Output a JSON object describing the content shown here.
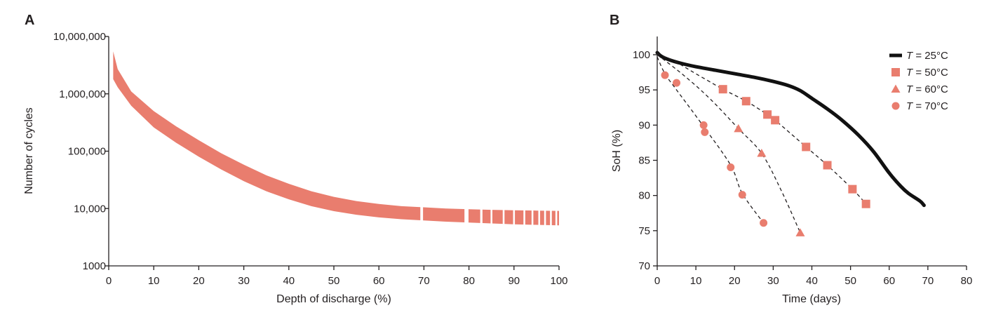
{
  "chart_data": [
    {
      "panel": "A",
      "type": "area",
      "xlabel": "Depth of discharge (%)",
      "ylabel": "Number of cycles",
      "y_scale": "log",
      "xlim": [
        0,
        100
      ],
      "ylim": [
        1000,
        10000000
      ],
      "x_ticks": [
        "0",
        "10",
        "20",
        "30",
        "40",
        "50",
        "60",
        "70",
        "80",
        "90",
        "100"
      ],
      "y_ticks": [
        "1000",
        "10,000",
        "100,000",
        "1,000,000",
        "10,000,000"
      ],
      "band_color": "#e97d6e",
      "band": [
        {
          "x": 1,
          "upper": 5500000,
          "lower": 1800000
        },
        {
          "x": 2,
          "upper": 2700000,
          "lower": 1300000
        },
        {
          "x": 5,
          "upper": 1100000,
          "lower": 620000
        },
        {
          "x": 10,
          "upper": 500000,
          "lower": 260000
        },
        {
          "x": 15,
          "upper": 270000,
          "lower": 140000
        },
        {
          "x": 20,
          "upper": 155000,
          "lower": 80000
        },
        {
          "x": 25,
          "upper": 92000,
          "lower": 48000
        },
        {
          "x": 30,
          "upper": 58000,
          "lower": 30000
        },
        {
          "x": 35,
          "upper": 38000,
          "lower": 20000
        },
        {
          "x": 40,
          "upper": 27000,
          "lower": 14500
        },
        {
          "x": 45,
          "upper": 20000,
          "lower": 11000
        },
        {
          "x": 50,
          "upper": 16000,
          "lower": 9000
        },
        {
          "x": 55,
          "upper": 13500,
          "lower": 7800
        },
        {
          "x": 60,
          "upper": 12000,
          "lower": 7000
        },
        {
          "x": 65,
          "upper": 11000,
          "lower": 6500
        },
        {
          "x": 70,
          "upper": 10500,
          "lower": 6200
        },
        {
          "x": 75,
          "upper": 10000,
          "lower": 5900
        },
        {
          "x": 80,
          "upper": 9700,
          "lower": 5700
        },
        {
          "x": 85,
          "upper": 9500,
          "lower": 5500
        },
        {
          "x": 90,
          "upper": 9300,
          "lower": 5300
        },
        {
          "x": 95,
          "upper": 9200,
          "lower": 5200
        },
        {
          "x": 100,
          "upper": 9100,
          "lower": 5100
        }
      ],
      "band_gaps": [
        [
          69.2,
          69.8
        ],
        [
          79.0,
          79.9
        ],
        [
          82.5,
          83.0
        ],
        [
          84.8,
          85.2
        ],
        [
          87.5,
          87.9
        ],
        [
          89.8,
          90.2
        ],
        [
          92.1,
          92.5
        ],
        [
          93.9,
          94.3
        ],
        [
          95.4,
          95.8
        ],
        [
          96.7,
          97.1
        ],
        [
          98.0,
          98.4
        ],
        [
          99.2,
          99.6
        ]
      ]
    },
    {
      "panel": "B",
      "type": "line",
      "xlabel": "Time (days)",
      "ylabel": "SoH (%)",
      "xlim": [
        0,
        80
      ],
      "ylim": [
        70,
        100
      ],
      "x_ticks": [
        "0",
        "10",
        "20",
        "30",
        "40",
        "50",
        "60",
        "70",
        "80"
      ],
      "y_ticks": [
        "70",
        "75",
        "80",
        "85",
        "90",
        "95",
        "100"
      ],
      "series": [
        {
          "name": "T = 25°C",
          "var": "T",
          "rest": " = 25°C",
          "marker": "line",
          "color": "#111111",
          "x": [
            0,
            1,
            3,
            6,
            10,
            15,
            20,
            25,
            30,
            34,
            37,
            40,
            44,
            48,
            52,
            56,
            60,
            63,
            65,
            68,
            69
          ],
          "y": [
            100.3,
            99.8,
            99.3,
            98.8,
            98.3,
            97.8,
            97.3,
            96.8,
            96.2,
            95.6,
            94.9,
            93.8,
            92.3,
            90.6,
            88.6,
            86.2,
            83.2,
            81.3,
            80.3,
            79.2,
            78.6
          ]
        },
        {
          "name": "T = 50°C",
          "var": "T",
          "rest": " = 50°C",
          "marker": "square",
          "color": "#e97d6e",
          "x": [
            17,
            23,
            28.5,
            30.5,
            38.5,
            44,
            50.5,
            54
          ],
          "y": [
            95.1,
            93.4,
            91.5,
            90.7,
            86.9,
            84.3,
            80.9,
            78.8
          ],
          "fit_x": [
            0,
            5,
            10,
            17,
            23,
            28.5,
            30.5,
            38.5,
            44,
            50.5,
            54
          ],
          "fit_y": [
            100.2,
            98.9,
            97.3,
            95.1,
            93.4,
            91.5,
            90.7,
            86.9,
            84.3,
            80.9,
            78.8
          ]
        },
        {
          "name": "T = 60°C",
          "var": "T",
          "rest": " = 60°C",
          "marker": "triangle",
          "color": "#e97d6e",
          "x": [
            21,
            27,
            37
          ],
          "y": [
            89.5,
            86.0,
            74.7
          ],
          "fit_x": [
            0,
            5,
            10,
            15,
            21,
            27,
            32,
            37
          ],
          "fit_y": [
            100.0,
            97.9,
            95.6,
            93.0,
            89.5,
            86.0,
            80.8,
            74.7
          ]
        },
        {
          "name": "T = 70°C",
          "var": "T",
          "rest": " = 70°C",
          "marker": "circle",
          "color": "#e97d6e",
          "x": [
            2,
            5,
            12,
            12.3,
            19,
            22,
            27.5
          ],
          "y": [
            97.1,
            96.0,
            90.0,
            89.0,
            84.0,
            80.1,
            76.1
          ],
          "fit_x": [
            0,
            2,
            5,
            12,
            19,
            22,
            27.5
          ],
          "fit_y": [
            99.7,
            97.3,
            95.0,
            89.8,
            84.3,
            80.3,
            76.1
          ]
        }
      ]
    }
  ]
}
